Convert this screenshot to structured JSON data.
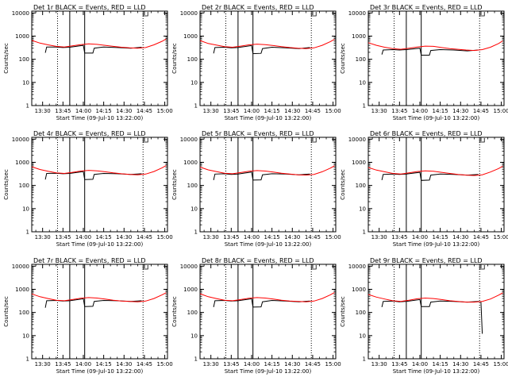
{
  "figure": {
    "background": "#ffffff",
    "events_color": "#000000",
    "lld_color": "#ff0000"
  },
  "chart_data": [
    {
      "type": "line",
      "title": "Det 1r BLACK = Events, RED = LLD",
      "xlabel": "Start Time (09-Jul-10 13:22:00)",
      "ylabel": "Counts/sec",
      "x_tick_labels": [
        "13:30",
        "13:45",
        "14:00",
        "14:15",
        "14:30",
        "14:45",
        "15:00"
      ],
      "y_tick_labels": [
        "1",
        "10",
        "100",
        "1000",
        "10000"
      ],
      "xlim": [
        "13:22",
        "15:02"
      ],
      "ylim": [
        1,
        12000
      ],
      "y_scale": "log",
      "vlines_dotted": [
        "13:41",
        "14:44"
      ],
      "vlines_solid": [
        "13:50",
        "14:01"
      ],
      "series": [
        {
          "color": "#000000",
          "x": [
            "13:32",
            "13:33",
            "13:40",
            "13:45",
            "13:50",
            "14:00",
            "14:01",
            "14:07",
            "14:08",
            "14:15",
            "14:25",
            "14:35",
            "14:43"
          ],
          "y": [
            190,
            340,
            340,
            320,
            330,
            400,
            185,
            185,
            300,
            340,
            320,
            300,
            330
          ]
        },
        {
          "color": "#ff0000",
          "x": [
            "13:22",
            "13:28",
            "13:34",
            "13:40",
            "13:46",
            "13:52",
            "13:58",
            "14:04",
            "14:10",
            "14:16",
            "14:22",
            "14:28",
            "14:34",
            "14:40",
            "14:46",
            "14:52",
            "14:58",
            "15:01"
          ],
          "y": [
            650,
            500,
            420,
            360,
            340,
            380,
            430,
            460,
            440,
            400,
            360,
            330,
            310,
            300,
            320,
            420,
            600,
            750
          ]
        }
      ]
    },
    {
      "type": "line",
      "title": "Det 2r BLACK = Events, RED = LLD",
      "xlabel": "Start Time (09-Jul-10 13:22:00)",
      "ylabel": "Counts/sec",
      "x_tick_labels": [
        "13:30",
        "13:45",
        "14:00",
        "14:15",
        "14:30",
        "14:45",
        "15:00"
      ],
      "y_tick_labels": [
        "1",
        "10",
        "100",
        "1000",
        "10000"
      ],
      "xlim": [
        "13:22",
        "15:02"
      ],
      "ylim": [
        1,
        12000
      ],
      "y_scale": "log",
      "vlines_dotted": [
        "13:41",
        "14:44"
      ],
      "vlines_solid": [
        "13:50",
        "14:01"
      ],
      "series": [
        {
          "color": "#000000",
          "x": [
            "13:32",
            "13:33",
            "13:40",
            "13:45",
            "13:50",
            "14:00",
            "14:01",
            "14:07",
            "14:08",
            "14:15",
            "14:25",
            "14:35",
            "14:43"
          ],
          "y": [
            180,
            320,
            330,
            310,
            320,
            390,
            175,
            180,
            290,
            330,
            310,
            290,
            320
          ]
        },
        {
          "color": "#ff0000",
          "x": [
            "13:22",
            "13:28",
            "13:34",
            "13:40",
            "13:46",
            "13:52",
            "13:58",
            "14:04",
            "14:10",
            "14:16",
            "14:22",
            "14:28",
            "14:34",
            "14:40",
            "14:46",
            "14:52",
            "14:58",
            "15:01"
          ],
          "y": [
            640,
            480,
            410,
            350,
            330,
            370,
            420,
            450,
            430,
            390,
            350,
            320,
            300,
            290,
            310,
            400,
            580,
            720
          ]
        }
      ]
    },
    {
      "type": "line",
      "title": "Det 3r BLACK = Events, RED = LLD",
      "xlabel": "Start Time (09-Jul-10 13:22:00)",
      "ylabel": "Counts/sec",
      "x_tick_labels": [
        "13:30",
        "13:45",
        "14:00",
        "14:15",
        "14:30",
        "14:45",
        "15:00"
      ],
      "y_tick_labels": [
        "1",
        "10",
        "100",
        "1000",
        "10000"
      ],
      "xlim": [
        "13:22",
        "15:02"
      ],
      "ylim": [
        1,
        12000
      ],
      "y_scale": "log",
      "vlines_dotted": [
        "13:41",
        "14:44"
      ],
      "vlines_solid": [
        "13:50",
        "14:01"
      ],
      "series": [
        {
          "color": "#000000",
          "x": [
            "13:32",
            "13:33",
            "13:40",
            "13:45",
            "13:50",
            "14:00",
            "14:01",
            "14:07",
            "14:08",
            "14:15",
            "14:25",
            "14:35",
            "14:43"
          ],
          "y": [
            160,
            250,
            260,
            250,
            260,
            300,
            150,
            150,
            240,
            260,
            250,
            230,
            250
          ]
        },
        {
          "color": "#ff0000",
          "x": [
            "13:22",
            "13:28",
            "13:34",
            "13:40",
            "13:46",
            "13:52",
            "13:58",
            "14:04",
            "14:10",
            "14:16",
            "14:22",
            "14:28",
            "14:34",
            "14:40",
            "14:46",
            "14:52",
            "14:58",
            "15:01"
          ],
          "y": [
            520,
            400,
            330,
            290,
            270,
            300,
            340,
            370,
            360,
            320,
            290,
            270,
            250,
            240,
            260,
            330,
            480,
            620
          ]
        }
      ]
    },
    {
      "type": "line",
      "title": "Det 4r BLACK = Events, RED = LLD",
      "xlabel": "Start Time (09-Jul-10 13:22:00)",
      "ylabel": "Counts/sec",
      "x_tick_labels": [
        "13:30",
        "13:45",
        "14:00",
        "14:15",
        "14:30",
        "14:45",
        "15:00"
      ],
      "y_tick_labels": [
        "1",
        "10",
        "100",
        "1000",
        "10000"
      ],
      "xlim": [
        "13:22",
        "15:02"
      ],
      "ylim": [
        1,
        12000
      ],
      "y_scale": "log",
      "vlines_dotted": [
        "13:41",
        "14:44"
      ],
      "vlines_solid": [
        "13:50",
        "14:01"
      ],
      "series": [
        {
          "color": "#000000",
          "x": [
            "13:32",
            "13:33",
            "13:40",
            "13:45",
            "13:50",
            "14:00",
            "14:01",
            "14:07",
            "14:08",
            "14:15",
            "14:25",
            "14:35",
            "14:43"
          ],
          "y": [
            180,
            330,
            340,
            320,
            330,
            400,
            180,
            185,
            300,
            330,
            320,
            300,
            320
          ]
        },
        {
          "color": "#ff0000",
          "x": [
            "13:22",
            "13:28",
            "13:34",
            "13:40",
            "13:46",
            "13:52",
            "13:58",
            "14:04",
            "14:10",
            "14:16",
            "14:22",
            "14:28",
            "14:34",
            "14:40",
            "14:46",
            "14:52",
            "14:58",
            "15:01"
          ],
          "y": [
            640,
            490,
            410,
            350,
            330,
            370,
            420,
            450,
            430,
            390,
            350,
            320,
            300,
            290,
            310,
            400,
            580,
            720
          ]
        }
      ]
    },
    {
      "type": "line",
      "title": "Det 5r BLACK = Events, RED = LLD",
      "xlabel": "Start Time (09-Jul-10 13:22:00)",
      "ylabel": "Counts/sec",
      "x_tick_labels": [
        "13:30",
        "13:45",
        "14:00",
        "14:15",
        "14:30",
        "14:45",
        "15:00"
      ],
      "y_tick_labels": [
        "1",
        "10",
        "100",
        "1000",
        "10000"
      ],
      "xlim": [
        "13:22",
        "15:02"
      ],
      "ylim": [
        1,
        12000
      ],
      "y_scale": "log",
      "vlines_dotted": [
        "13:41",
        "14:44"
      ],
      "vlines_solid": [
        "13:50",
        "14:01"
      ],
      "series": [
        {
          "color": "#000000",
          "x": [
            "13:32",
            "13:33",
            "13:40",
            "13:45",
            "13:50",
            "14:00",
            "14:01",
            "14:07",
            "14:08",
            "14:15",
            "14:25",
            "14:35",
            "14:43"
          ],
          "y": [
            170,
            310,
            320,
            300,
            310,
            380,
            170,
            175,
            290,
            320,
            310,
            290,
            310
          ]
        },
        {
          "color": "#ff0000",
          "x": [
            "13:22",
            "13:28",
            "13:34",
            "13:40",
            "13:46",
            "13:52",
            "13:58",
            "14:04",
            "14:10",
            "14:16",
            "14:22",
            "14:28",
            "14:34",
            "14:40",
            "14:46",
            "14:52",
            "14:58",
            "15:01"
          ],
          "y": [
            620,
            470,
            400,
            340,
            320,
            360,
            410,
            440,
            420,
            380,
            340,
            310,
            290,
            280,
            300,
            390,
            560,
            700
          ]
        }
      ]
    },
    {
      "type": "line",
      "title": "Det 6r BLACK = Events, RED = LLD",
      "xlabel": "Start Time (09-Jul-10 13:22:00)",
      "ylabel": "Counts/sec",
      "x_tick_labels": [
        "13:30",
        "13:45",
        "14:00",
        "14:15",
        "14:30",
        "14:45",
        "15:00"
      ],
      "y_tick_labels": [
        "1",
        "10",
        "100",
        "1000",
        "10000"
      ],
      "xlim": [
        "13:22",
        "15:02"
      ],
      "ylim": [
        1,
        12000
      ],
      "y_scale": "log",
      "vlines_dotted": [
        "13:41",
        "14:44"
      ],
      "vlines_solid": [
        "13:50",
        "14:01"
      ],
      "series": [
        {
          "color": "#000000",
          "x": [
            "13:32",
            "13:33",
            "13:40",
            "13:45",
            "13:50",
            "14:00",
            "14:01",
            "14:07",
            "14:08",
            "14:15",
            "14:25",
            "14:35",
            "14:43"
          ],
          "y": [
            170,
            300,
            310,
            300,
            310,
            370,
            165,
            170,
            280,
            310,
            300,
            280,
            300
          ]
        },
        {
          "color": "#ff0000",
          "x": [
            "13:22",
            "13:28",
            "13:34",
            "13:40",
            "13:46",
            "13:52",
            "13:58",
            "14:04",
            "14:10",
            "14:16",
            "14:22",
            "14:28",
            "14:34",
            "14:40",
            "14:46",
            "14:52",
            "14:58",
            "15:01"
          ],
          "y": [
            600,
            460,
            390,
            330,
            310,
            350,
            400,
            430,
            410,
            370,
            330,
            300,
            280,
            270,
            290,
            380,
            540,
            680
          ]
        }
      ]
    },
    {
      "type": "line",
      "title": "Det 7r BLACK = Events, RED = LLD",
      "xlabel": "Start Time (09-Jul-10 13:22:00)",
      "ylabel": "Counts/sec",
      "x_tick_labels": [
        "13:30",
        "13:45",
        "14:00",
        "14:15",
        "14:30",
        "14:45",
        "15:00"
      ],
      "y_tick_labels": [
        "1",
        "10",
        "100",
        "1000",
        "10000"
      ],
      "xlim": [
        "13:22",
        "15:02"
      ],
      "ylim": [
        1,
        12000
      ],
      "y_scale": "log",
      "vlines_dotted": [
        "13:41",
        "14:44"
      ],
      "vlines_solid": [
        "13:50",
        "14:01"
      ],
      "series": [
        {
          "color": "#000000",
          "x": [
            "13:32",
            "13:33",
            "13:40",
            "13:45",
            "13:50",
            "14:00",
            "14:01",
            "14:07",
            "14:08",
            "14:15",
            "14:25",
            "14:35",
            "14:43"
          ],
          "y": [
            160,
            320,
            330,
            310,
            320,
            390,
            180,
            185,
            300,
            330,
            320,
            300,
            320
          ]
        },
        {
          "color": "#ff0000",
          "x": [
            "13:22",
            "13:28",
            "13:34",
            "13:40",
            "13:46",
            "13:52",
            "13:58",
            "14:04",
            "14:10",
            "14:16",
            "14:22",
            "14:28",
            "14:34",
            "14:40",
            "14:46",
            "14:52",
            "14:58",
            "15:01"
          ],
          "y": [
            630,
            480,
            400,
            340,
            320,
            360,
            410,
            440,
            420,
            380,
            340,
            310,
            300,
            290,
            310,
            400,
            580,
            710
          ]
        }
      ]
    },
    {
      "type": "line",
      "title": "Det 8r BLACK = Events, RED = LLD",
      "xlabel": "Start Time (09-Jul-10 13:22:00)",
      "ylabel": "Counts/sec",
      "x_tick_labels": [
        "13:30",
        "13:45",
        "14:00",
        "14:15",
        "14:30",
        "14:45",
        "15:00"
      ],
      "y_tick_labels": [
        "1",
        "10",
        "100",
        "1000",
        "10000"
      ],
      "xlim": [
        "13:22",
        "15:02"
      ],
      "ylim": [
        1,
        12000
      ],
      "y_scale": "log",
      "vlines_dotted": [
        "13:41",
        "14:44"
      ],
      "vlines_solid": [
        "13:50",
        "14:01"
      ],
      "series": [
        {
          "color": "#000000",
          "x": [
            "13:32",
            "13:33",
            "13:40",
            "13:45",
            "13:50",
            "14:00",
            "14:01",
            "14:07",
            "14:08",
            "14:15",
            "14:25",
            "14:35",
            "14:43"
          ],
          "y": [
            170,
            320,
            330,
            310,
            320,
            390,
            170,
            175,
            290,
            330,
            310,
            290,
            310
          ]
        },
        {
          "color": "#ff0000",
          "x": [
            "13:22",
            "13:28",
            "13:34",
            "13:40",
            "13:46",
            "13:52",
            "13:58",
            "14:04",
            "14:10",
            "14:16",
            "14:22",
            "14:28",
            "14:34",
            "14:40",
            "14:46",
            "14:52",
            "14:58",
            "15:01"
          ],
          "y": [
            640,
            480,
            400,
            340,
            320,
            360,
            410,
            440,
            420,
            380,
            340,
            310,
            300,
            290,
            310,
            400,
            580,
            720
          ]
        }
      ]
    },
    {
      "type": "line",
      "title": "Det 9r BLACK = Events, RED = LLD",
      "xlabel": "Start Time (09-Jul-10 13:22:00)",
      "ylabel": "Counts/sec",
      "x_tick_labels": [
        "13:30",
        "13:45",
        "14:00",
        "14:15",
        "14:30",
        "14:45",
        "15:00"
      ],
      "y_tick_labels": [
        "1",
        "10",
        "100",
        "1000",
        "10000"
      ],
      "xlim": [
        "13:22",
        "15:02"
      ],
      "ylim": [
        1,
        12000
      ],
      "y_scale": "log",
      "vlines_dotted": [
        "13:41",
        "14:44"
      ],
      "vlines_solid": [
        "13:50",
        "14:01"
      ],
      "series": [
        {
          "color": "#000000",
          "x": [
            "13:32",
            "13:33",
            "13:40",
            "13:45",
            "13:50",
            "14:00",
            "14:01",
            "14:07",
            "14:08",
            "14:15",
            "14:25",
            "14:35",
            "14:43",
            "14:45",
            "14:46"
          ],
          "y": [
            170,
            300,
            310,
            290,
            300,
            360,
            180,
            180,
            280,
            310,
            300,
            280,
            300,
            290,
            12
          ]
        },
        {
          "color": "#ff0000",
          "x": [
            "13:22",
            "13:28",
            "13:34",
            "13:40",
            "13:46",
            "13:52",
            "13:58",
            "14:04",
            "14:10",
            "14:16",
            "14:22",
            "14:28",
            "14:34",
            "14:40",
            "14:46",
            "14:52",
            "14:58",
            "15:01"
          ],
          "y": [
            600,
            460,
            380,
            320,
            300,
            340,
            390,
            420,
            400,
            360,
            320,
            300,
            280,
            280,
            300,
            380,
            560,
            700
          ]
        }
      ]
    }
  ]
}
